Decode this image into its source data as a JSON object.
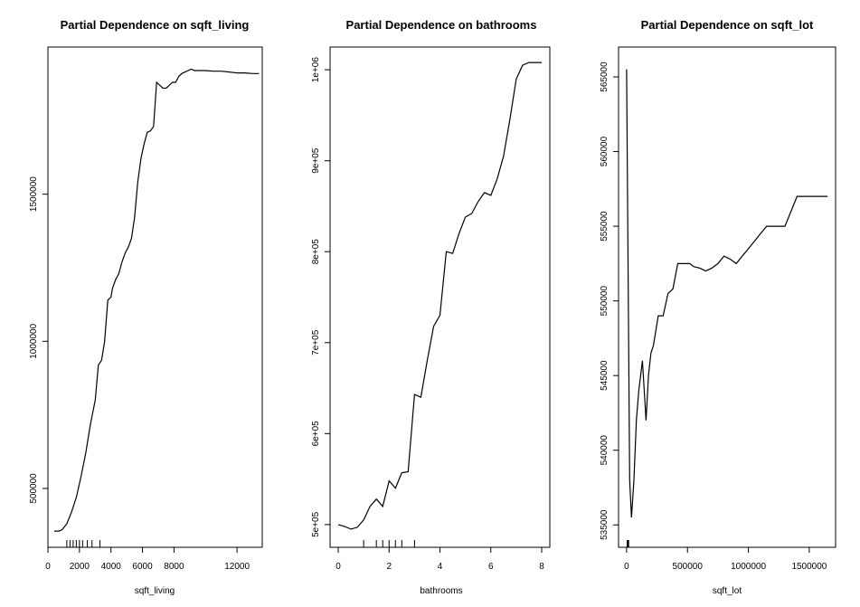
{
  "chart_data": [
    {
      "type": "line",
      "title": "Partial Dependence on sqft_living",
      "xlabel": "sqft_living",
      "ylabel": "",
      "xlim": [
        0,
        13600
      ],
      "ylim": [
        300000,
        2000000
      ],
      "xticks": [
        0,
        2000,
        4000,
        6000,
        8000,
        12000
      ],
      "xtick_labels": [
        "0",
        "2000",
        "4000",
        "6000",
        "8000",
        "12000"
      ],
      "yticks": [
        500000,
        1000000,
        1500000
      ],
      "ytick_labels": [
        "500000",
        "1000000",
        "1500000"
      ],
      "rug": [
        1200,
        1400,
        1600,
        1800,
        2000,
        2200,
        2500,
        2800,
        3300
      ],
      "x": [
        400,
        700,
        900,
        1200,
        1500,
        1800,
        2100,
        2400,
        2700,
        3000,
        3200,
        3400,
        3600,
        3800,
        4000,
        4100,
        4300,
        4500,
        4700,
        4900,
        5100,
        5300,
        5500,
        5700,
        5900,
        6100,
        6300,
        6500,
        6700,
        6900,
        7100,
        7300,
        7500,
        7700,
        7900,
        8100,
        8300,
        8500,
        8700,
        8900,
        9100,
        9300,
        9500,
        9700,
        10000,
        10500,
        11000,
        11500,
        12000,
        12500,
        13000,
        13400
      ],
      "y": [
        355000,
        355000,
        360000,
        380000,
        420000,
        470000,
        540000,
        620000,
        720000,
        800000,
        920000,
        935000,
        1000000,
        1140000,
        1150000,
        1180000,
        1210000,
        1230000,
        1270000,
        1300000,
        1320000,
        1350000,
        1420000,
        1540000,
        1620000,
        1670000,
        1710000,
        1715000,
        1730000,
        1880000,
        1870000,
        1860000,
        1860000,
        1870000,
        1880000,
        1880000,
        1900000,
        1910000,
        1915000,
        1920000,
        1925000,
        1920000,
        1920000,
        1920000,
        1920000,
        1918000,
        1918000,
        1915000,
        1912000,
        1912000,
        1910000,
        1910000
      ]
    },
    {
      "type": "line",
      "title": "Partial Dependence on bathrooms",
      "xlabel": "bathrooms",
      "ylabel": "",
      "xlim": [
        -0.32,
        8.32
      ],
      "ylim": [
        475000,
        1025000
      ],
      "xticks": [
        0,
        2,
        4,
        6,
        8
      ],
      "xtick_labels": [
        "0",
        "2",
        "4",
        "6",
        "8"
      ],
      "yticks": [
        500000,
        600000,
        700000,
        800000,
        900000,
        1000000
      ],
      "ytick_labels": [
        "5e+05",
        "6e+05",
        "7e+05",
        "8e+05",
        "9e+05",
        "1e+06"
      ],
      "rug": [
        1,
        1.5,
        1.75,
        2,
        2.25,
        2.5,
        3
      ],
      "x": [
        0,
        0.25,
        0.5,
        0.75,
        1,
        1.25,
        1.5,
        1.75,
        2,
        2.25,
        2.5,
        2.75,
        3,
        3.25,
        3.5,
        3.75,
        4,
        4.25,
        4.5,
        4.75,
        5,
        5.25,
        5.5,
        5.75,
        6,
        6.25,
        6.5,
        6.75,
        7,
        7.25,
        7.5,
        7.75,
        8
      ],
      "y": [
        500000,
        498000,
        495000,
        497000,
        505000,
        520000,
        528000,
        520000,
        548000,
        540000,
        557000,
        558000,
        643000,
        640000,
        680000,
        718000,
        730000,
        800000,
        798000,
        820000,
        838000,
        842000,
        855000,
        865000,
        862000,
        880000,
        905000,
        945000,
        990000,
        1005000,
        1008000,
        1008000,
        1008000
      ]
    },
    {
      "type": "line",
      "title": "Partial Dependence on sqft_lot",
      "xlabel": "sqft_lot",
      "ylabel": "",
      "xlim": [
        -66000,
        1716000
      ],
      "ylim": [
        533500,
        567000
      ],
      "xticks": [
        0,
        500000,
        1000000,
        1500000
      ],
      "xtick_labels": [
        "0",
        "500000",
        "1000000",
        "1500000"
      ],
      "yticks": [
        535000,
        540000,
        545000,
        550000,
        555000,
        560000,
        565000
      ],
      "ytick_labels": [
        "535000",
        "540000",
        "545000",
        "550000",
        "555000",
        "560000",
        "565000"
      ],
      "rug": [
        5000,
        8000,
        11000,
        14000,
        17000
      ],
      "x": [
        0,
        10000,
        25000,
        40000,
        60000,
        80000,
        100000,
        130000,
        160000,
        180000,
        200000,
        220000,
        240000,
        260000,
        300000,
        340000,
        380000,
        420000,
        450000,
        480000,
        520000,
        550000,
        600000,
        650000,
        700000,
        750000,
        800000,
        850000,
        900000,
        950000,
        1000000,
        1050000,
        1100000,
        1150000,
        1200000,
        1300000,
        1400000,
        1450000,
        1500000,
        1650000
      ],
      "y": [
        565500,
        555000,
        538000,
        535500,
        538000,
        542000,
        544000,
        546000,
        542000,
        545000,
        546500,
        547000,
        548000,
        549000,
        549000,
        550500,
        550800,
        552500,
        552500,
        552500,
        552500,
        552300,
        552200,
        552000,
        552200,
        552500,
        553000,
        552800,
        552500,
        553000,
        553500,
        554000,
        554500,
        555000,
        555000,
        555000,
        557000,
        557000,
        557000,
        557000
      ]
    }
  ]
}
